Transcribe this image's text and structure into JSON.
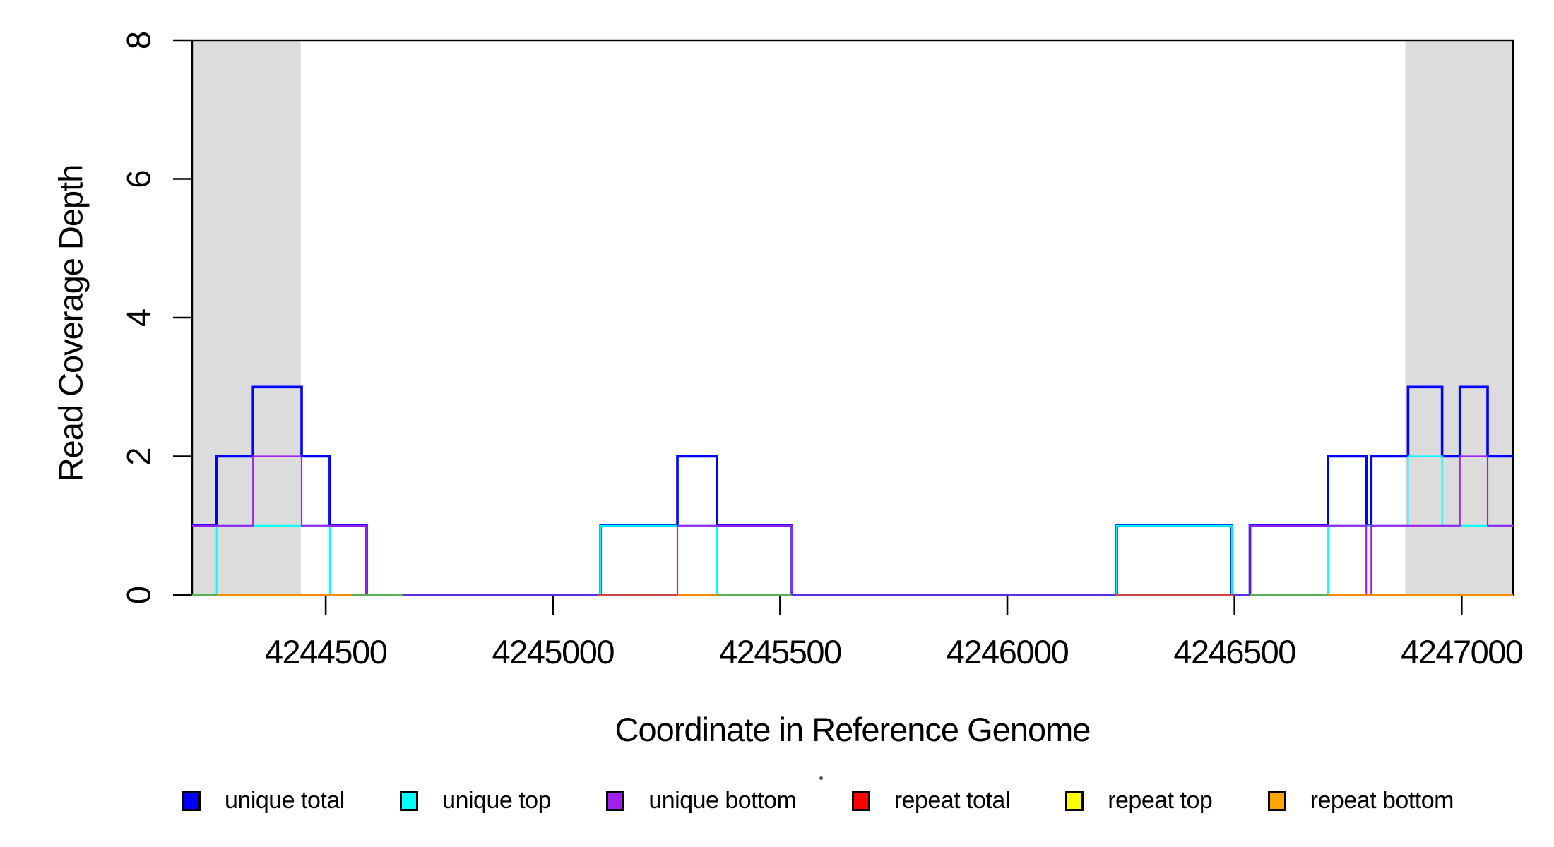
{
  "chart_data": {
    "type": "line",
    "subtype": "step-coverage",
    "title": "",
    "xlabel": "Coordinate in Reference Genome",
    "ylabel": "Read Coverage Depth",
    "xlim": [
      4244206,
      4247113
    ],
    "ylim": [
      0,
      8
    ],
    "grid": false,
    "x_ticks": [
      {
        "value": 4244500,
        "label": "4244500"
      },
      {
        "value": 4245000,
        "label": "4245000"
      },
      {
        "value": 4245500,
        "label": "4245500"
      },
      {
        "value": 4246000,
        "label": "4246000"
      },
      {
        "value": 4246500,
        "label": "4246500"
      },
      {
        "value": 4247000,
        "label": "4247000"
      }
    ],
    "y_ticks": [
      {
        "value": 0,
        "label": "0"
      },
      {
        "value": 2,
        "label": "2"
      },
      {
        "value": 4,
        "label": "4"
      },
      {
        "value": 6,
        "label": "6"
      },
      {
        "value": 8,
        "label": "8"
      }
    ],
    "shaded_regions": [
      {
        "name": "repeat-region-left",
        "x0": 4244206,
        "x1": 4244445,
        "color": "#DCDCDC"
      },
      {
        "name": "repeat-region-right",
        "x0": 4246876,
        "x1": 4247113,
        "color": "#DCDCDC"
      }
    ],
    "series": [
      {
        "name": "repeat total",
        "color": "#FF0000",
        "width": 2.2,
        "steps": [
          [
            4244206,
            0
          ]
        ]
      },
      {
        "name": "repeat top",
        "color": "#FFFF00",
        "width": 2.2,
        "steps": [
          [
            4244206,
            0
          ]
        ]
      },
      {
        "name": "repeat bottom",
        "color": "#FFA500",
        "width": 2.2,
        "steps": [
          [
            4244206,
            0
          ]
        ]
      },
      {
        "name": "unique total",
        "color": "#0000FF",
        "width": 3.6,
        "steps": [
          [
            4244206,
            1
          ],
          [
            4244260,
            2
          ],
          [
            4244340,
            3
          ],
          [
            4244447,
            2
          ],
          [
            4244509,
            1
          ],
          [
            4244590,
            0
          ],
          [
            4245105,
            1
          ],
          [
            4245274,
            2
          ],
          [
            4245361,
            1
          ],
          [
            4245526,
            0
          ],
          [
            4246241,
            1
          ],
          [
            4246494,
            0
          ],
          [
            4246534,
            1
          ],
          [
            4246706,
            2
          ],
          [
            4246790,
            1
          ],
          [
            4246801,
            2
          ],
          [
            4246882,
            3
          ],
          [
            4246957,
            2
          ],
          [
            4246996,
            3
          ],
          [
            4247057,
            2
          ]
        ]
      },
      {
        "name": "unique top",
        "color": "#00FFFF",
        "width": 2.2,
        "steps": [
          [
            4244206,
            0
          ],
          [
            4244260,
            1
          ],
          [
            4244509,
            0
          ],
          [
            4245105,
            1
          ],
          [
            4245361,
            0
          ],
          [
            4246241,
            1
          ],
          [
            4246494,
            0
          ],
          [
            4246706,
            1
          ],
          [
            4246882,
            2
          ],
          [
            4246957,
            1
          ]
        ]
      },
      {
        "name": "unique bottom",
        "color": "#A020F0",
        "width": 2.2,
        "steps": [
          [
            4244206,
            1
          ],
          [
            4244340,
            2
          ],
          [
            4244447,
            1
          ],
          [
            4244590,
            0
          ],
          [
            4245274,
            1
          ],
          [
            4245526,
            0
          ],
          [
            4246534,
            1
          ],
          [
            4246790,
            0
          ],
          [
            4246801,
            1
          ],
          [
            4246996,
            2
          ],
          [
            4247057,
            1
          ]
        ]
      }
    ],
    "baseline_overplot_segments": [
      {
        "x0": 4244206,
        "x1": 4244260,
        "color": "#58B158"
      },
      {
        "x0": 4244260,
        "x1": 4244556,
        "color": "#F78A05"
      },
      {
        "x0": 4244556,
        "x1": 4244670,
        "color": "#58B158"
      },
      {
        "x0": 4244670,
        "x1": 4245100,
        "color": "#5A2EE6"
      },
      {
        "x0": 4245100,
        "x1": 4245275,
        "color": "#CC4444"
      },
      {
        "x0": 4245275,
        "x1": 4245361,
        "color": "#F78A05"
      },
      {
        "x0": 4245361,
        "x1": 4245525,
        "color": "#58B158"
      },
      {
        "x0": 4245525,
        "x1": 4246238,
        "color": "#5A2EE6"
      },
      {
        "x0": 4246238,
        "x1": 4246498,
        "color": "#CC4444"
      },
      {
        "x0": 4246498,
        "x1": 4246534,
        "color": "#5A2EE6"
      },
      {
        "x0": 4246534,
        "x1": 4246705,
        "color": "#58B158"
      },
      {
        "x0": 4246705,
        "x1": 4247113,
        "color": "#F78A05"
      }
    ],
    "legend": [
      {
        "label": "unique total",
        "color": "#0000FF"
      },
      {
        "label": "unique top",
        "color": "#00FFFF"
      },
      {
        "label": "unique bottom",
        "color": "#A020F0"
      },
      {
        "label": "repeat total",
        "color": "#FF0000"
      },
      {
        "label": "repeat top",
        "color": "#FFFF00"
      },
      {
        "label": "repeat bottom",
        "color": "#FFA500"
      }
    ],
    "legend_position": "bottom"
  }
}
